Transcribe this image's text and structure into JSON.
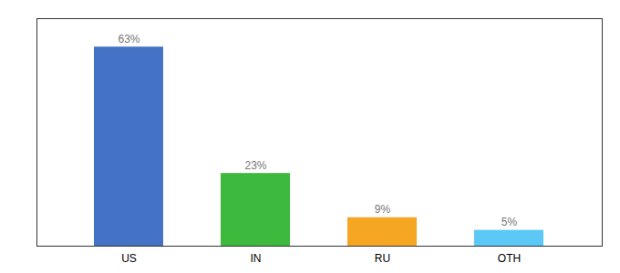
{
  "chart_data": {
    "type": "bar",
    "categories": [
      "US",
      "IN",
      "RU",
      "OTH"
    ],
    "values": [
      63,
      23,
      9,
      5
    ],
    "value_labels": [
      "63%",
      "23%",
      "9%",
      "5%"
    ],
    "colors": [
      "#4472c4",
      "#3dba3d",
      "#f5a623",
      "#5bc8f5"
    ],
    "ylim": [
      0,
      72
    ],
    "tick_labels": "x",
    "data_labels": true,
    "grid": false
  }
}
